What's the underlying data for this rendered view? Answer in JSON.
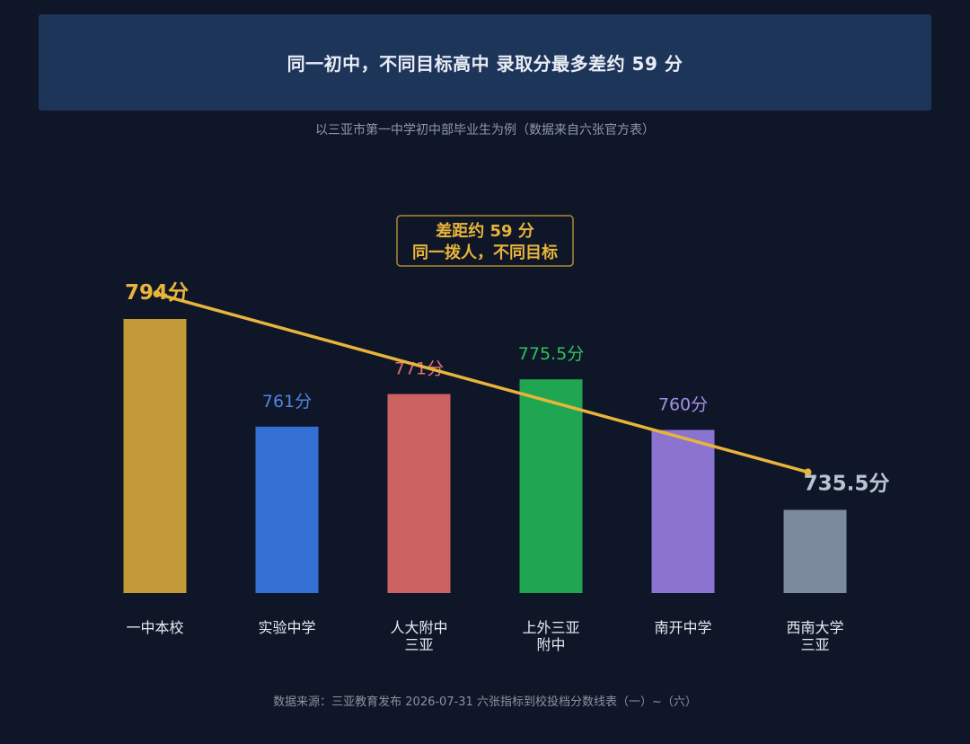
{
  "header": {
    "title": "同一初中，不同目标高中  录取分最多差约 59 分",
    "subtitle": "以三亚市第一中学初中部毕业生为例（数据来自六张官方表）"
  },
  "footer": {
    "source": "数据来源：三亚教育发布 2026-07-31 六张指标到校投档分数线表（一）~（六）"
  },
  "colors": {
    "background": "#0e1627",
    "banner": "#1e355a",
    "trend_line": "#e8b43c",
    "annotation": "#e8b43c"
  },
  "chart_data": {
    "type": "bar",
    "title": "",
    "xlabel": "",
    "ylabel": "",
    "ylim": [
      710,
      800
    ],
    "grid": false,
    "categories": [
      [
        "一中本校"
      ],
      [
        "实验中学"
      ],
      [
        "人大附中",
        "三亚"
      ],
      [
        "上外三亚",
        "附中"
      ],
      [
        "南开中学"
      ],
      [
        "西南大学",
        "三亚"
      ]
    ],
    "values": [
      794,
      761,
      771,
      775.5,
      760,
      735.5
    ],
    "value_labels": [
      "794分",
      "761分",
      "771分",
      "775.5分",
      "760分",
      "735.5分"
    ],
    "bar_colors": [
      "#c39a38",
      "#3470d4",
      "#cc6262",
      "#20a650",
      "#8b74d0",
      "#7b8a9c"
    ],
    "label_colors": [
      "#e8b43c",
      "#4f86e0",
      "#e07272",
      "#2ec35f",
      "#a390e4",
      "#b9c4d2"
    ],
    "trend_line": {
      "from": 794,
      "to": 735.5
    },
    "annotation": {
      "lines": [
        "差距约 59 分",
        "同一拨人，不同目标"
      ]
    }
  }
}
